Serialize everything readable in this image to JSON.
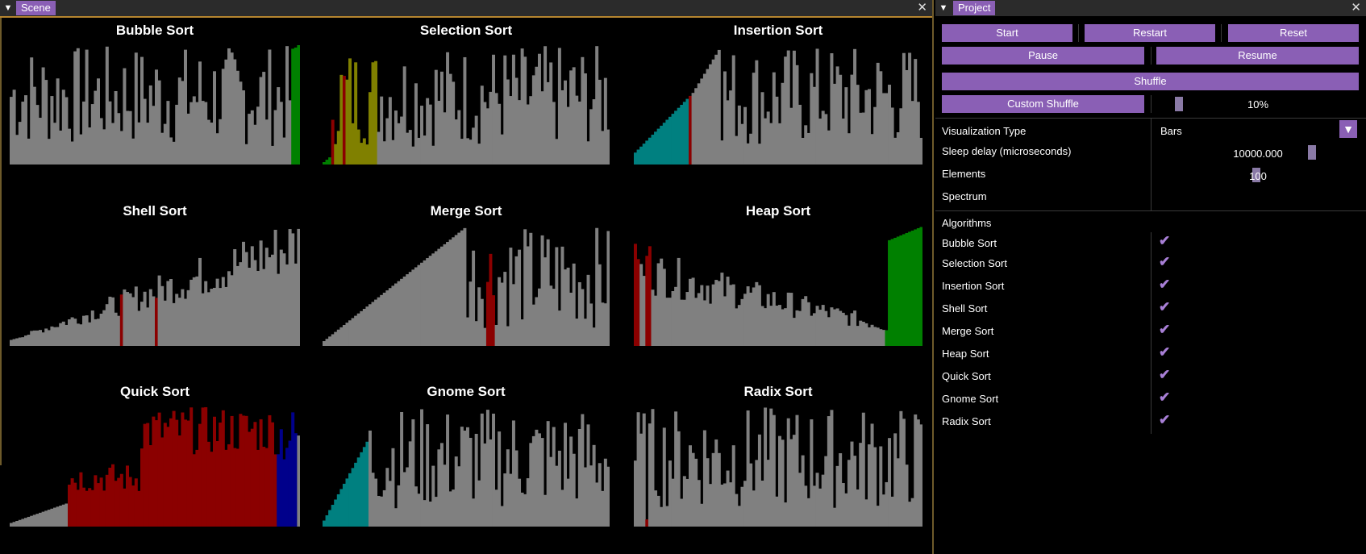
{
  "scene": {
    "tab_label": "Scene",
    "collapse_icon": "triangle-down-icon",
    "close_icon": "close-icon",
    "panels": [
      {
        "title": "Bubble Sort"
      },
      {
        "title": "Selection Sort"
      },
      {
        "title": "Insertion Sort"
      },
      {
        "title": "Shell Sort"
      },
      {
        "title": "Merge Sort"
      },
      {
        "title": "Heap Sort"
      },
      {
        "title": "Quick Sort"
      },
      {
        "title": "Gnome Sort"
      },
      {
        "title": "Radix Sort"
      }
    ],
    "colors": {
      "default": "#808080",
      "sorted": "#008000",
      "active": "#8b0000",
      "insertion_sorted": "#008080",
      "selection_scan": "#808000",
      "pivot": "#00008b"
    }
  },
  "project": {
    "tab_label": "Project",
    "buttons": {
      "start": "Start",
      "restart": "Restart",
      "reset": "Reset",
      "pause": "Pause",
      "resume": "Resume",
      "shuffle": "Shuffle",
      "custom_shuffle": "Custom Shuffle"
    },
    "custom_shuffle_percent": "10%",
    "settings": {
      "visualization_type_label": "Visualization Type",
      "visualization_type_value": "Bars",
      "sleep_delay_label": "Sleep delay (microseconds)",
      "sleep_delay_value": "10000.000",
      "elements_label": "Elements",
      "elements_value": "100",
      "spectrum_label": "Spectrum"
    },
    "algorithms_header": "Algorithms",
    "algorithms": [
      {
        "name": "Bubble Sort",
        "checked": true
      },
      {
        "name": "Selection Sort",
        "checked": true
      },
      {
        "name": "Insertion Sort",
        "checked": true
      },
      {
        "name": "Shell Sort",
        "checked": true
      },
      {
        "name": "Merge Sort",
        "checked": true
      },
      {
        "name": "Heap Sort",
        "checked": true
      },
      {
        "name": "Quick Sort",
        "checked": true
      },
      {
        "name": "Gnome Sort",
        "checked": true
      },
      {
        "name": "Radix Sort",
        "checked": true
      }
    ],
    "accent_color": "#8a5fb5",
    "check_color": "#a87fd6"
  }
}
